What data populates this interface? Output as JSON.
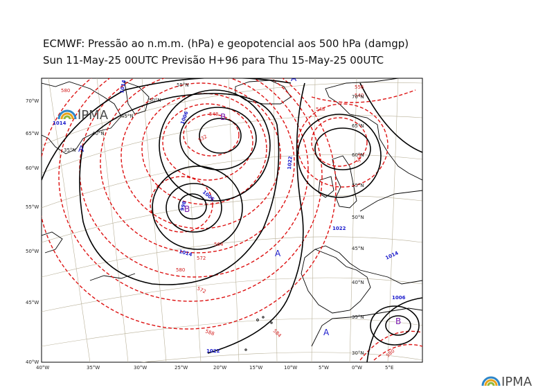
{
  "title_line1": "ECMWF:  Pressão ao n.m.m. (hPa) e geopotencial aos 500 hPa (damgp)",
  "title_line2": "Sun 11-May-25 00UTC Previsão H+96 para Thu 15-May-25 00UTC",
  "logo_text": "IPMA",
  "bottom_axis_labels": [
    "40°W",
    "35°W",
    "30°W",
    "25°W",
    "20°W",
    "15°W",
    "10°W",
    "5°W",
    "0°W",
    "5°E"
  ],
  "left_axis_labels": [
    "70°W",
    "65°W",
    "60°W",
    "55°W",
    "50°W",
    "45°W",
    "40°W"
  ],
  "graticule_labels": [
    "55°N",
    "50°N",
    "45°N",
    "40°N",
    "35°N",
    "70°N",
    "65°N",
    "60°N",
    "55°N",
    "50°N",
    "45°N",
    "40°N",
    "35°N",
    "30°N"
  ],
  "pressure_labels": [
    "1014",
    "1014",
    "1006",
    "1022",
    "1006",
    "998",
    "1014",
    "1022",
    "1014",
    "1006",
    "1022"
  ],
  "geopotential_labels": [
    "580",
    "532",
    "548",
    "564",
    "572",
    "580",
    "588",
    "548",
    "572",
    "584",
    "580",
    "564",
    "556",
    "540"
  ],
  "centers": [
    {
      "letter": "A",
      "type": "high"
    },
    {
      "letter": "B",
      "type": "low"
    },
    {
      "letter": "B",
      "type": "low"
    },
    {
      "letter": "A",
      "type": "high"
    },
    {
      "letter": "A",
      "type": "high"
    },
    {
      "letter": "A",
      "type": "high"
    },
    {
      "letter": "B",
      "type": "low"
    }
  ],
  "colors": {
    "isobar": "#000000",
    "geopotential": "#dd1111",
    "label_blue": "#1a1acc",
    "land_outline": "#000000",
    "graticule": "#b0a890"
  }
}
